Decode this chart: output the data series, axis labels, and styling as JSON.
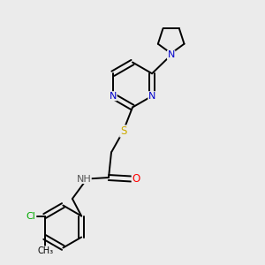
{
  "bg_color": "#ebebeb",
  "bond_color": "#000000",
  "atom_colors": {
    "N": "#0000cc",
    "S": "#ccaa00",
    "O": "#ff0000",
    "Cl": "#00aa00",
    "H": "#555555",
    "C": "#000000"
  },
  "figsize": [
    3.0,
    3.0
  ],
  "dpi": 100
}
